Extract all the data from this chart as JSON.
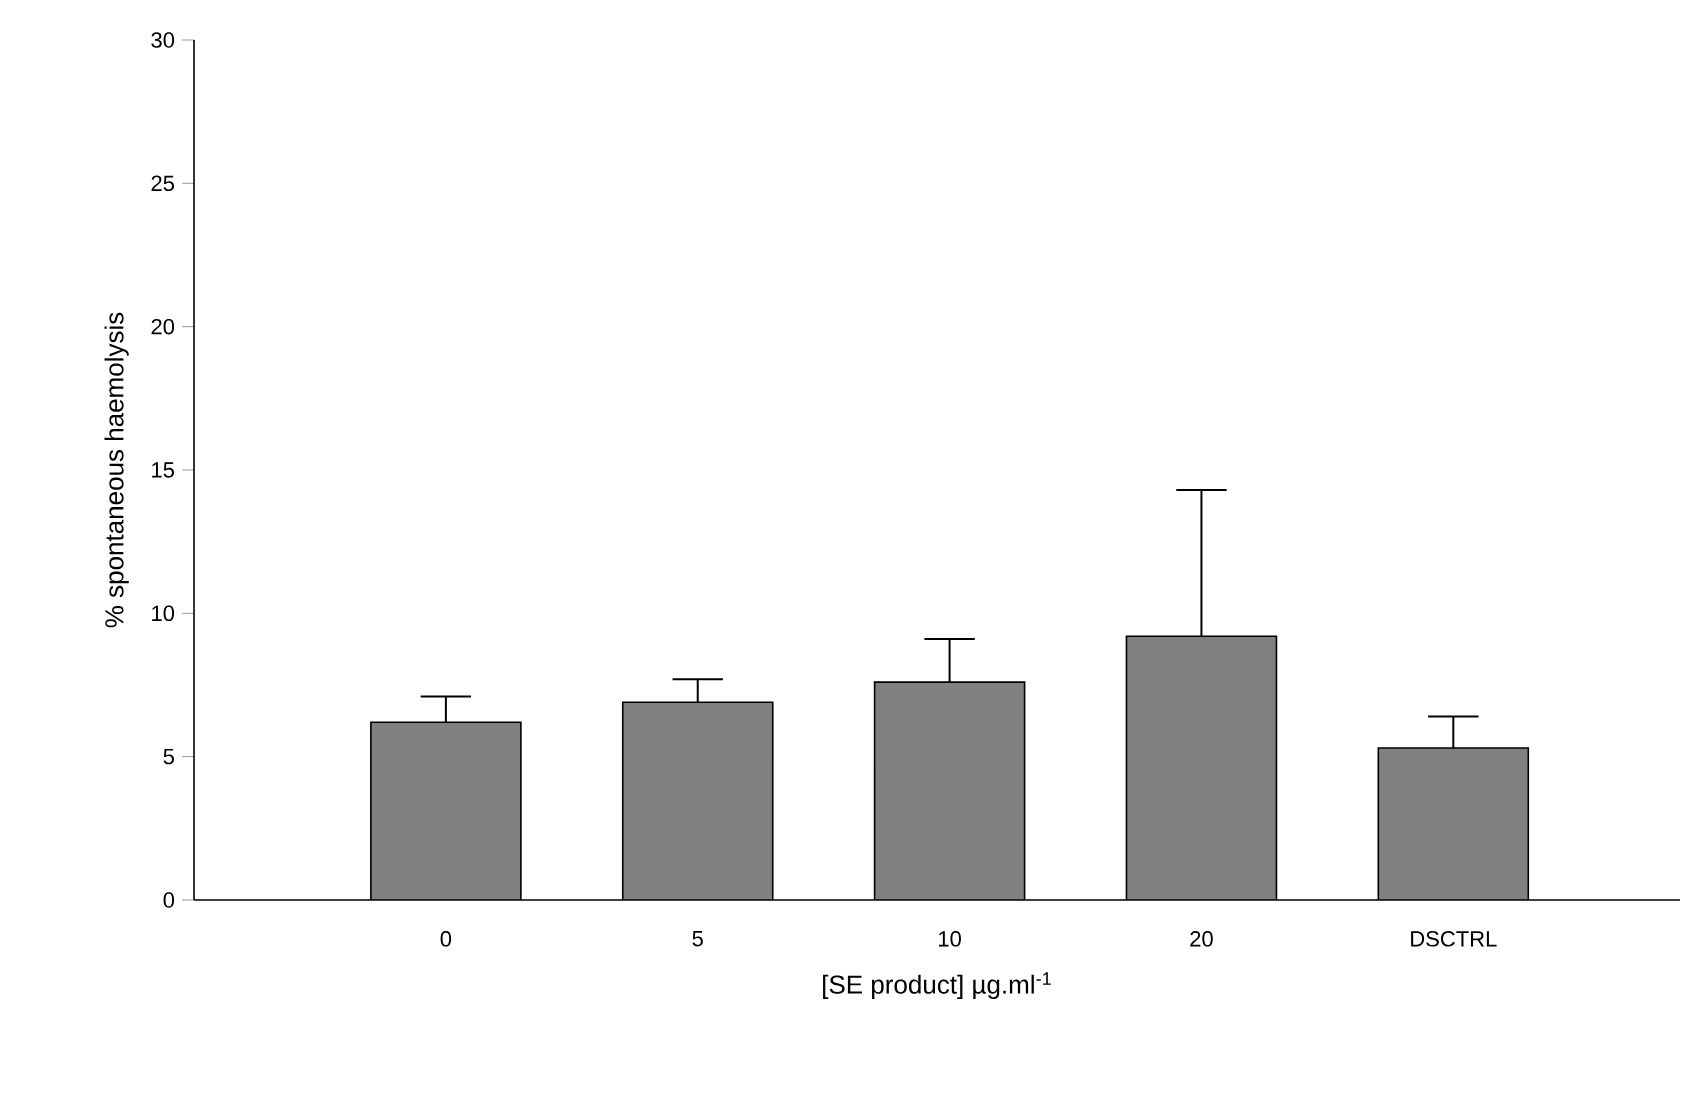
{
  "chart_data": {
    "type": "bar",
    "xlabel": "[SE product] µg.ml$^{-1}$",
    "ylabel": "% spontaneous haemolysis",
    "categories": [
      "0",
      "5",
      "10",
      "20",
      "DSCTRL"
    ],
    "values": [
      6.2,
      6.9,
      7.6,
      9.2,
      5.3
    ],
    "errors": [
      [
        6.2,
        7.1
      ],
      [
        6.9,
        7.7
      ],
      [
        7.6,
        9.1
      ],
      [
        9.2,
        14.3
      ],
      [
        5.3,
        6.4
      ]
    ],
    "color": "#808080",
    "ylim": [
      0,
      30
    ],
    "yticks": [
      0,
      5,
      10,
      15,
      20,
      25,
      30
    ]
  }
}
